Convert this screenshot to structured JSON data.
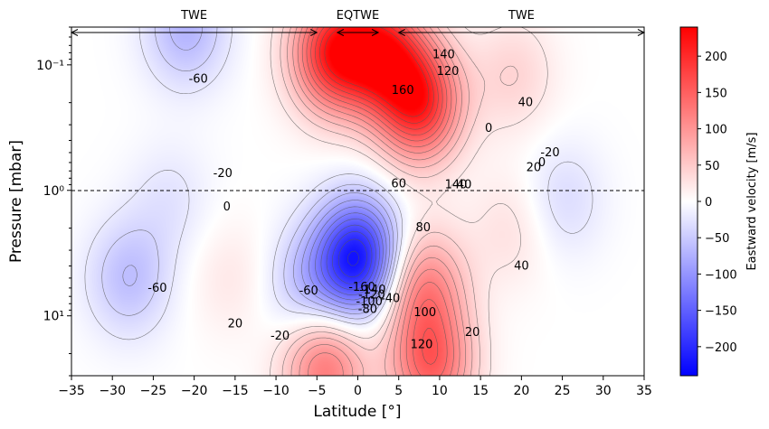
{
  "chart_data": {
    "type": "heatmap",
    "xlabel": "Latitude [°]",
    "ylabel": "Pressure [mbar]",
    "colorbar_label": "Eastward velocity [m/s]",
    "xlim": [
      -35,
      35
    ],
    "ylim_mbar": [
      30,
      0.05
    ],
    "yscale": "log",
    "x_ticks": [
      -35,
      -30,
      -25,
      -20,
      -15,
      -10,
      -5,
      0,
      5,
      10,
      15,
      20,
      25,
      30,
      35
    ],
    "x_tick_labels": [
      "−35",
      "−30",
      "−25",
      "−20",
      "−15",
      "−10",
      "−5",
      "0",
      "5",
      "10",
      "15",
      "20",
      "25",
      "30",
      "35"
    ],
    "y_ticks": [
      0.1,
      1,
      10
    ],
    "y_tick_labels": [
      "10⁻¹",
      "10⁰",
      "10¹"
    ],
    "colorbar_range": [
      -240,
      240
    ],
    "colorbar_ticks": [
      -200,
      -150,
      -100,
      -50,
      0,
      50,
      100,
      150,
      200
    ],
    "colorbar_tick_labels": [
      "−200",
      "−150",
      "−100",
      "−50",
      "0",
      "50",
      "100",
      "150",
      "200"
    ],
    "colormap": {
      "low": "#0000ff",
      "mid": "#ffffff",
      "high": "#ff0000"
    },
    "reference_line_pressure_mbar": 1,
    "regions": [
      {
        "label": "TWE",
        "from_lat": -35,
        "to_lat": -5
      },
      {
        "label": "EQTWE",
        "from_lat": -2.5,
        "to_lat": 2.5
      },
      {
        "label": "TWE",
        "from_lat": 5,
        "to_lat": 35
      }
    ],
    "features": [
      {
        "lat": 0,
        "p": 3.5,
        "u": -220
      },
      {
        "lat": -21,
        "p": 0.05,
        "u": -70
      },
      {
        "lat": -23,
        "p": 1.2,
        "u": -25
      },
      {
        "lat": -28,
        "p": 5,
        "u": -60
      },
      {
        "lat": -6,
        "p": 6,
        "u": -60
      },
      {
        "lat": -3,
        "p": 0.08,
        "u": 200
      },
      {
        "lat": 3,
        "p": 0.08,
        "u": 190
      },
      {
        "lat": 7.5,
        "p": 0.2,
        "u": 200
      },
      {
        "lat": 8,
        "p": 6,
        "u": 115
      },
      {
        "lat": 9,
        "p": 25,
        "u": 140
      },
      {
        "lat": -4,
        "p": 25,
        "u": 130
      },
      {
        "lat": -15.5,
        "p": 5,
        "u": 22
      },
      {
        "lat": 19,
        "p": 0.12,
        "u": 40
      },
      {
        "lat": 19,
        "p": 2,
        "u": 30
      },
      {
        "lat": 25,
        "p": 1.2,
        "u": -35
      }
    ],
    "contour_labels": [
      {
        "text": "-60",
        "lat": -19.5,
        "p": 0.13
      },
      {
        "text": "-20",
        "lat": -16.5,
        "p": 0.73
      },
      {
        "text": "0",
        "lat": -16,
        "p": 1.35
      },
      {
        "text": "-60",
        "lat": -24.5,
        "p": 6.0
      },
      {
        "text": "20",
        "lat": -15,
        "p": 11.6
      },
      {
        "text": "-20",
        "lat": -9.5,
        "p": 14.5
      },
      {
        "text": "-60",
        "lat": -6,
        "p": 6.3
      },
      {
        "text": "-160",
        "lat": 0.5,
        "p": 5.9
      },
      {
        "text": "-140",
        "lat": 1.8,
        "p": 6.2
      },
      {
        "text": "-120",
        "lat": 1.7,
        "p": 6.8
      },
      {
        "text": "-100",
        "lat": 1.4,
        "p": 7.7
      },
      {
        "text": "-80",
        "lat": 1.2,
        "p": 8.9
      },
      {
        "text": "-40",
        "lat": 4,
        "p": 7.3
      },
      {
        "text": "60",
        "lat": 5,
        "p": 0.89
      },
      {
        "text": "80",
        "lat": 8,
        "p": 1.98
      },
      {
        "text": "100",
        "lat": 8.2,
        "p": 9.4
      },
      {
        "text": "120",
        "lat": 7.8,
        "p": 17
      },
      {
        "text": "160",
        "lat": 5.5,
        "p": 0.16
      },
      {
        "text": "140",
        "lat": 10.5,
        "p": 0.083
      },
      {
        "text": "120",
        "lat": 11,
        "p": 0.113
      },
      {
        "text": "140",
        "lat": 12,
        "p": 0.9
      },
      {
        "text": "40",
        "lat": 13,
        "p": 0.9
      },
      {
        "text": "0",
        "lat": 16,
        "p": 0.32
      },
      {
        "text": "40",
        "lat": 20.5,
        "p": 0.2
      },
      {
        "text": "20",
        "lat": 21.5,
        "p": 0.66
      },
      {
        "text": "0",
        "lat": 22.5,
        "p": 0.6
      },
      {
        "text": "-20",
        "lat": 23.5,
        "p": 0.5
      },
      {
        "text": "40",
        "lat": 20,
        "p": 4.0
      },
      {
        "text": "20",
        "lat": 14,
        "p": 13.5
      }
    ]
  }
}
